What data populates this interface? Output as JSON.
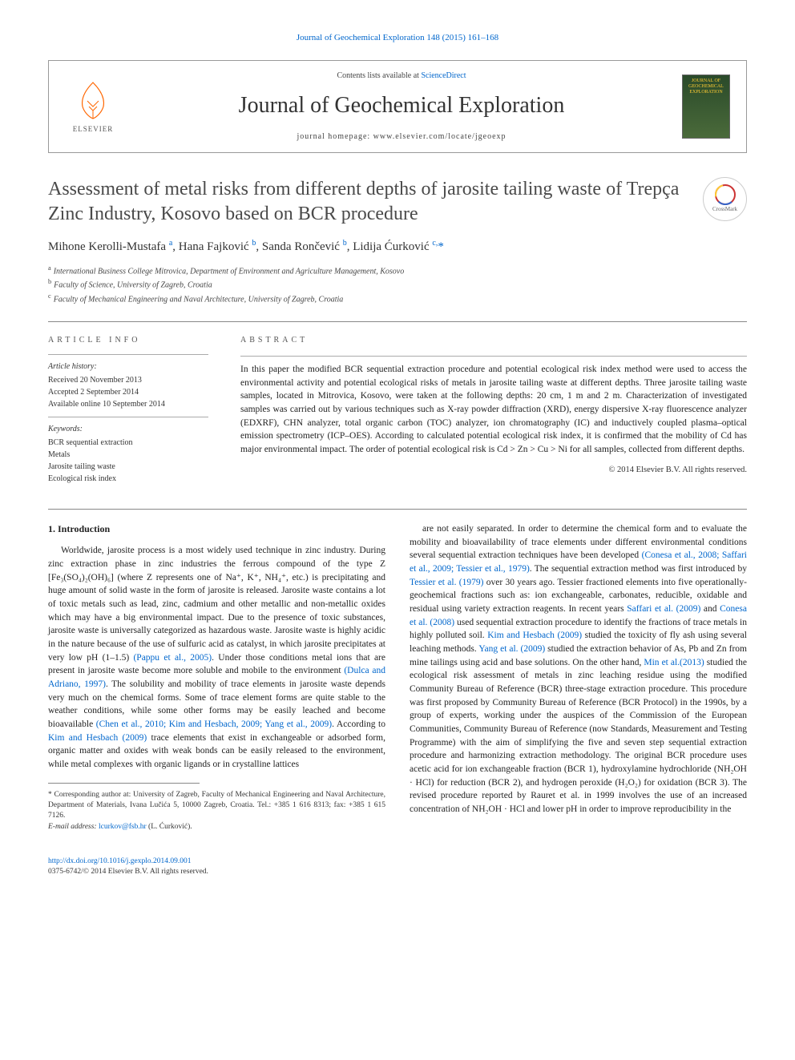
{
  "journal_ref": "Journal of Geochemical Exploration 148 (2015) 161–168",
  "contents_line_prefix": "Contents lists available at ",
  "contents_line_link": "ScienceDirect",
  "journal_name": "Journal of Geochemical Exploration",
  "journal_homepage_prefix": "journal homepage: ",
  "journal_homepage": "www.elsevier.com/locate/jgeoexp",
  "elsevier_label": "ELSEVIER",
  "cover_text": "JOURNAL OF GEOCHEMICAL EXPLORATION",
  "crossmark_label": "CrossMark",
  "article_title": "Assessment of metal risks from different depths of jarosite tailing waste of Trepça Zinc Industry, Kosovo based on BCR procedure",
  "authors_html": "Mihone Kerolli-Mustafa <sup>a</sup>, Hana Fajković <sup>b</sup>, Sanda Rončević <sup>b</sup>, Lidija Ćurković <sup>c,</sup><span class='corr-star'>*</span>",
  "affiliations": {
    "a": "International Business College Mitrovica, Department of Environment and Agriculture Management, Kosovo",
    "b": "Faculty of Science, University of Zagreb, Croatia",
    "c": "Faculty of Mechanical Engineering and Naval Architecture, University of Zagreb, Croatia"
  },
  "article_info_heading": "article info",
  "history_heading": "Article history:",
  "history": [
    "Received 20 November 2013",
    "Accepted 2 September 2014",
    "Available online 10 September 2014"
  ],
  "keywords_heading": "Keywords:",
  "keywords": [
    "BCR sequential extraction",
    "Metals",
    "Jarosite tailing waste",
    "Ecological risk index"
  ],
  "abstract_heading": "abstract",
  "abstract_text": "In this paper the modified BCR sequential extraction procedure and potential ecological risk index method were used to access the environmental activity and potential ecological risks of metals in jarosite tailing waste at different depths. Three jarosite tailing waste samples, located in Mitrovica, Kosovo, were taken at the following depths: 20 cm, 1 m and 2 m. Characterization of investigated samples was carried out by various techniques such as X-ray powder diffraction (XRD), energy dispersive X-ray fluorescence analyzer (EDXRF), CHN analyzer, total organic carbon (TOC) analyzer, ion chromatography (IC) and inductively coupled plasma–optical emission spectrometry (ICP–OES). According to calculated potential ecological risk index, it is confirmed that the mobility of Cd has major environmental impact. The order of potential ecological risk is Cd > Zn > Cu > Ni for all samples, collected from different depths.",
  "copyright_line": "© 2014 Elsevier B.V. All rights reserved.",
  "intro_heading": "1. Introduction",
  "col1_text": "Worldwide, jarosite process is a most widely used technique in zinc industry. During zinc extraction phase in zinc industries the ferrous compound of the type Z [Fe₃(SO₄)₂(OH)₆] (where Z represents one of Na⁺, K⁺, NH₄⁺, etc.) is precipitating and huge amount of solid waste in the form of jarosite is released. Jarosite waste contains a lot of toxic metals such as lead, zinc, cadmium and other metallic and non-metallic oxides which may have a big environmental impact. Due to the presence of toxic substances, jarosite waste is universally categorized as hazardous waste. Jarosite waste is highly acidic in the nature because of the use of sulfuric acid as catalyst, in which jarosite precipitates at very low pH (1–1.5) <span class='citation'>(Pappu et al., 2005)</span>. Under those conditions metal ions that are present in jarosite waste become more soluble and mobile to the environment <span class='citation'>(Dulca and Adriano, 1997)</span>. The solubility and mobility of trace elements in jarosite waste depends very much on the chemical forms. Some of trace element forms are quite stable to the weather conditions, while some other forms may be easily leached and become bioavailable <span class='citation'>(Chen et al., 2010; Kim and Hesbach, 2009; Yang et al., 2009)</span>. According to <span class='citation'>Kim and Hesbach (2009)</span> trace elements that exist in exchangeable or adsorbed form, organic matter and oxides with weak bonds can be easily released to the environment, while metal complexes with organic ligands or in crystalline lattices",
  "col2_text": "are not easily separated. In order to determine the chemical form and to evaluate the mobility and bioavailability of trace elements under different environmental conditions several sequential extraction techniques have been developed <span class='citation'>(Conesa et al., 2008; Saffari et al., 2009; Tessier et al., 1979)</span>. The sequential extraction method was first introduced by <span class='citation'>Tessier et al. (1979)</span> over 30 years ago. Tessier fractioned elements into five operationally-geochemical fractions such as: ion exchangeable, carbonates, reducible, oxidable and residual using variety extraction reagents. In recent years <span class='citation'>Saffari et al. (2009)</span> and <span class='citation'>Conesa et al. (2008)</span> used sequential extraction procedure to identify the fractions of trace metals in highly polluted soil. <span class='citation'>Kim and Hesbach (2009)</span> studied the toxicity of fly ash using several leaching methods. <span class='citation'>Yang et al. (2009)</span> studied the extraction behavior of As, Pb and Zn from mine tailings using acid and base solutions. On the other hand, <span class='citation'>Min et al.(2013)</span> studied the ecological risk assessment of metals in zinc leaching residue using the modified Community Bureau of Reference (BCR) three-stage extraction procedure. This procedure was first proposed by Community Bureau of Reference (BCR Protocol) in the 1990s, by a group of experts, working under the auspices of the Commission of the European Communities, Community Bureau of Reference (now Standards, Measurement and Testing Programme) with the aim of simplifying the five and seven step sequential extraction procedure and harmonizing extraction methodology. The original BCR procedure uses acetic acid for ion exchangeable fraction (BCR 1), hydroxylamine hydrochloride (NH₂OH · HCl) for reduction (BCR 2), and hydrogen peroxide (H₂O₂) for oxidation (BCR 3). The revised procedure reported by Rauret et al. in 1999 involves the use of an increased concentration of NH₂OH · HCl and lower pH in order to improve reproducibility in the",
  "footnote_star": "* ",
  "footnote_text": "Corresponding author at: University of Zagreb, Faculty of Mechanical Engineering and Naval Architecture, Department of Materials, Ivana Lučića 5, 10000 Zagreb, Croatia. Tel.: +385 1 616 8313; fax: +385 1 615 7126.",
  "footnote_email_label": "E-mail address: ",
  "footnote_email": "lcurkov@fsb.hr",
  "footnote_email_suffix": " (L. Ćurković).",
  "doi": "http://dx.doi.org/10.1016/j.gexplo.2014.09.001",
  "issn_line": "0375-6742/© 2014 Elsevier B.V. All rights reserved.",
  "colors": {
    "link": "#0066cc",
    "text": "#222222",
    "heading_gray": "#4a4a4a",
    "elsevier_orange": "#ff6600",
    "cover_bg_top": "#2a4a2a",
    "cover_bg_bottom": "#4a6a3a",
    "cover_text": "#ffcc33"
  }
}
